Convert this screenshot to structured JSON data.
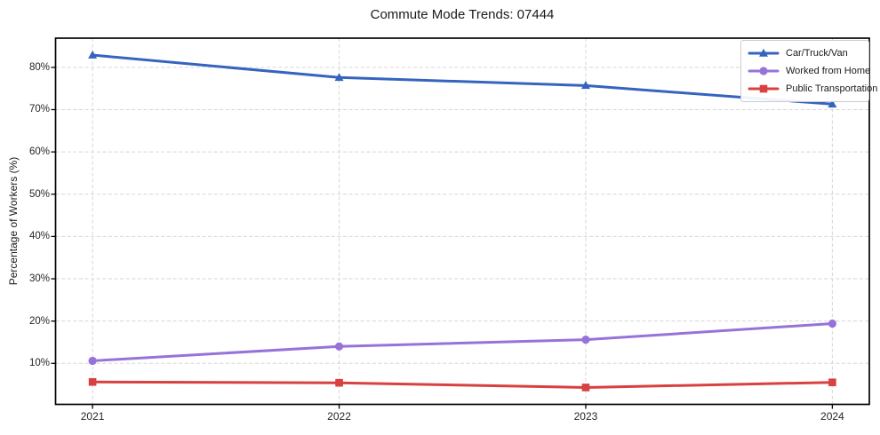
{
  "chart_data": {
    "type": "line",
    "title": "Commute Mode Trends: 07444",
    "xlabel": "",
    "ylabel": "Percentage of Workers (%)",
    "categories": [
      2021,
      2022,
      2023,
      2024
    ],
    "series": [
      {
        "name": "Car/Truck/Van",
        "color": "#3564bf",
        "marker": "triangle",
        "values": [
          82.9,
          77.6,
          75.7,
          71.3
        ]
      },
      {
        "name": "Worked from Home",
        "color": "#9673d9",
        "marker": "circle",
        "values": [
          10.6,
          14.0,
          15.6,
          19.4
        ]
      },
      {
        "name": "Public Transportation",
        "color": "#d94040",
        "marker": "square",
        "values": [
          5.6,
          5.4,
          4.3,
          5.5
        ]
      }
    ],
    "xlim": [
      2020.85,
      2024.15
    ],
    "ylim": [
      0.3,
      86.9
    ],
    "xticks": {
      "values": [
        2021,
        2022,
        2023,
        2024
      ],
      "labels": [
        "2021",
        "2022",
        "2023",
        "2024"
      ]
    },
    "yticks": {
      "values": [
        10,
        20,
        30,
        40,
        50,
        60,
        70,
        80
      ],
      "labels": [
        "10%",
        "20%",
        "30%",
        "40%",
        "50%",
        "60%",
        "70%",
        "80%"
      ]
    },
    "grid": true,
    "legend_position": "upper right"
  }
}
